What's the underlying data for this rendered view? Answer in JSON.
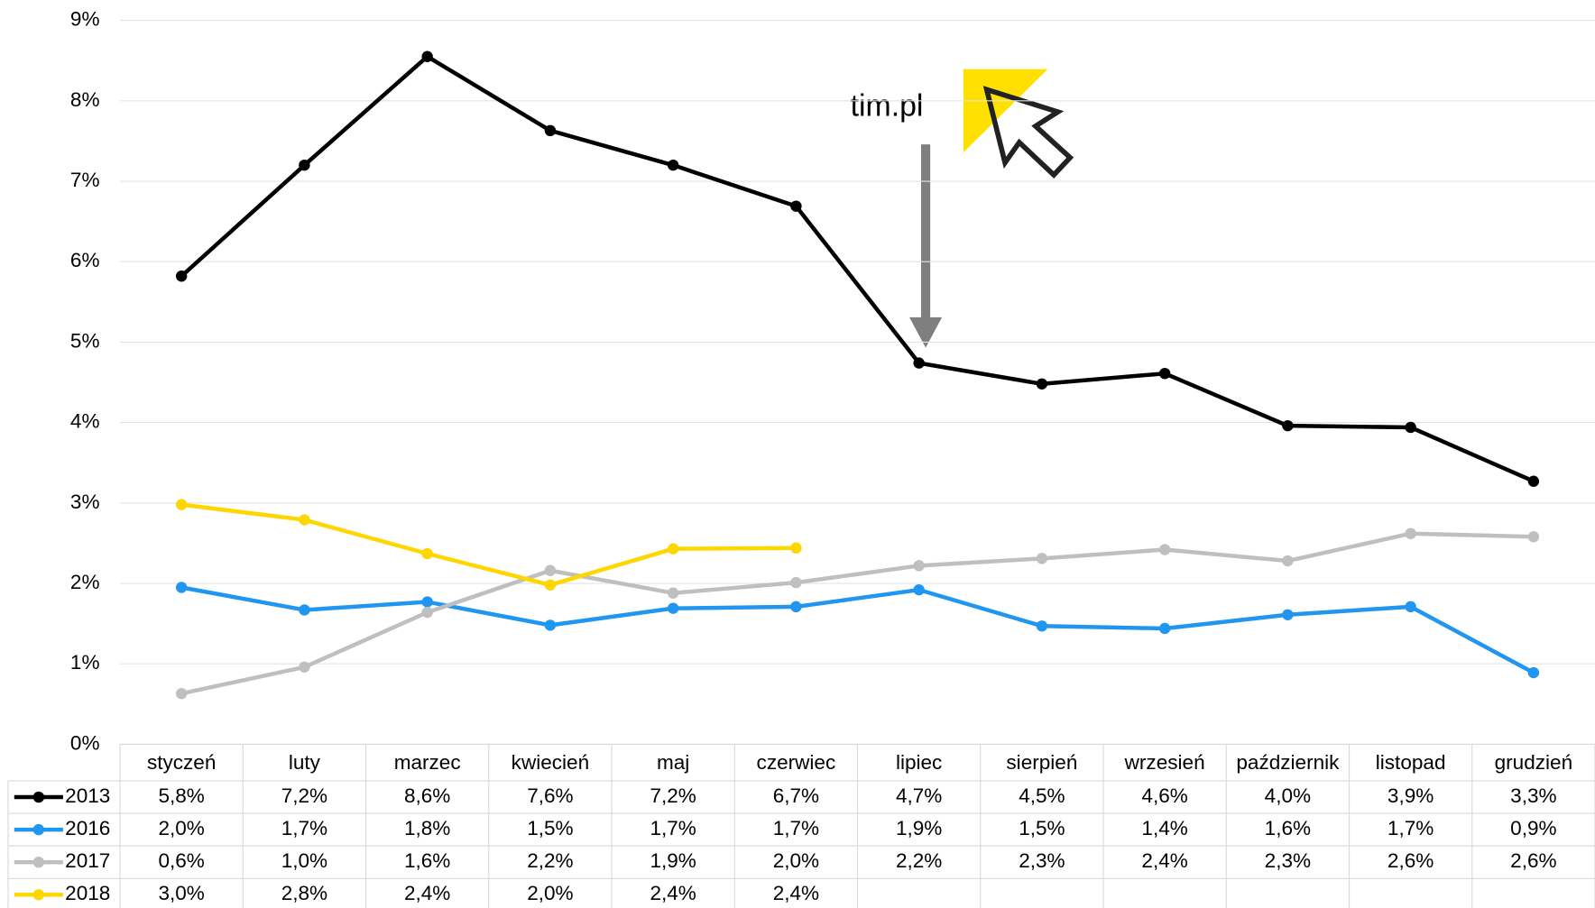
{
  "chart_data": {
    "type": "line",
    "annotation": "tim.pl",
    "categories": [
      "styczeń",
      "luty",
      "marzec",
      "kwiecień",
      "maj",
      "czerwiec",
      "lipiec",
      "sierpień",
      "wrzesień",
      "październik",
      "listopad",
      "grudzień"
    ],
    "ylim": [
      0,
      9
    ],
    "yticks": [
      {
        "value": 0,
        "label": "0%"
      },
      {
        "value": 1,
        "label": "1%"
      },
      {
        "value": 2,
        "label": "2%"
      },
      {
        "value": 3,
        "label": "3%"
      },
      {
        "value": 4,
        "label": "4%"
      },
      {
        "value": 5,
        "label": "5%"
      },
      {
        "value": 6,
        "label": "6%"
      },
      {
        "value": 7,
        "label": "7%"
      },
      {
        "value": 8,
        "label": "8%"
      },
      {
        "value": 9,
        "label": "9%"
      }
    ],
    "grid": true,
    "series": [
      {
        "name": "2013",
        "color": "#000000",
        "values": [
          5.82,
          7.2,
          8.55,
          7.63,
          7.2,
          6.69,
          4.74,
          4.48,
          4.61,
          3.96,
          3.94,
          3.27
        ],
        "value_labels": [
          "5,8%",
          "7,2%",
          "8,6%",
          "7,6%",
          "7,2%",
          "6,7%",
          "4,7%",
          "4,5%",
          "4,6%",
          "4,0%",
          "3,9%",
          "3,3%"
        ]
      },
      {
        "name": "2016",
        "color": "#2196f0",
        "values": [
          1.95,
          1.67,
          1.77,
          1.48,
          1.69,
          1.71,
          1.92,
          1.47,
          1.44,
          1.61,
          1.71,
          0.89
        ],
        "value_labels": [
          "2,0%",
          "1,7%",
          "1,8%",
          "1,5%",
          "1,7%",
          "1,7%",
          "1,9%",
          "1,5%",
          "1,4%",
          "1,6%",
          "1,7%",
          "0,9%"
        ]
      },
      {
        "name": "2017",
        "color": "#bfbfbf",
        "values": [
          0.63,
          0.96,
          1.64,
          2.16,
          1.88,
          2.01,
          2.22,
          2.31,
          2.42,
          2.28,
          2.62,
          2.58
        ],
        "value_labels": [
          "0,6%",
          "1,0%",
          "1,6%",
          "2,2%",
          "1,9%",
          "2,0%",
          "2,2%",
          "2,3%",
          "2,4%",
          "2,3%",
          "2,6%",
          "2,6%"
        ]
      },
      {
        "name": "2018",
        "color": "#ffd700",
        "values": [
          2.98,
          2.79,
          2.37,
          1.98,
          2.43,
          2.44,
          null,
          null,
          null,
          null,
          null,
          null
        ],
        "value_labels": [
          "3,0%",
          "2,8%",
          "2,4%",
          "2,0%",
          "2,4%",
          "2,4%",
          null,
          null,
          null,
          null,
          null,
          null
        ]
      }
    ]
  }
}
